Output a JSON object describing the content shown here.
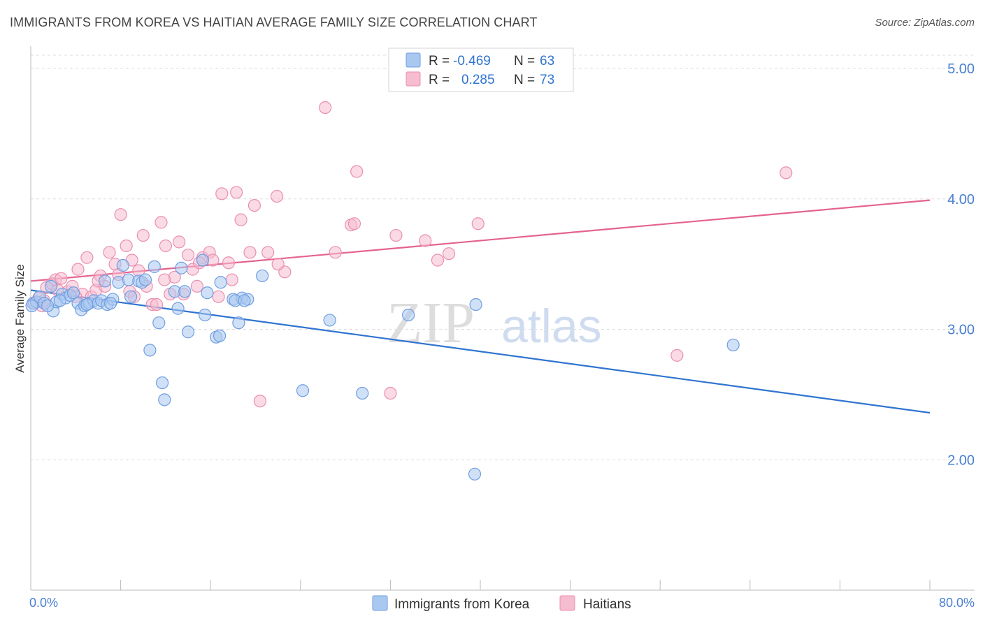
{
  "title": "IMMIGRANTS FROM KOREA VS HAITIAN AVERAGE FAMILY SIZE CORRELATION CHART",
  "source": "Source: ZipAtlas.com",
  "watermark": {
    "zip": "ZIP",
    "atlas": "atlas"
  },
  "colors": {
    "korea_fill": "#a9c8f0",
    "korea_stroke": "#6f9ee0",
    "korea_line": "#2f74d0",
    "haiti_fill": "#f6bcd0",
    "haiti_stroke": "#ea8fb0",
    "haiti_line": "#e4638e",
    "tick_text": "#4a7fd4",
    "grid": "#dddddd"
  },
  "legend": {
    "korea": {
      "r_label": "R =",
      "r_value": "-0.469",
      "n_label": "N =",
      "n_value": "63"
    },
    "haiti": {
      "r_label": "R =",
      "r_value": "0.285",
      "n_label": "N =",
      "n_value": "73"
    }
  },
  "chart_data": {
    "type": "scatter",
    "title": "IMMIGRANTS FROM KOREA VS HAITIAN AVERAGE FAMILY SIZE CORRELATION CHART",
    "xlabel": "",
    "ylabel": "Average Family Size",
    "xlim": [
      0,
      80
    ],
    "ylim": [
      1.0,
      5.15
    ],
    "x_tick_labels": [
      "0.0%",
      "80.0%"
    ],
    "y_ticks": [
      2.0,
      3.0,
      4.0,
      5.0
    ],
    "y_tick_labels": [
      "2.00",
      "3.00",
      "4.00",
      "5.00"
    ],
    "grid": "horizontal dashed",
    "legend_position": "top-center",
    "series": [
      {
        "name": "Immigrants from Korea",
        "r": -0.469,
        "n": 63,
        "trend": {
          "x": [
            0,
            80
          ],
          "y": [
            3.3,
            2.36
          ]
        },
        "points": [
          [
            0.2,
            3.2
          ],
          [
            0.5,
            3.21
          ],
          [
            0.8,
            3.25
          ],
          [
            1.2,
            3.2
          ],
          [
            1.8,
            3.33
          ],
          [
            2.0,
            3.14
          ],
          [
            2.3,
            3.21
          ],
          [
            2.8,
            3.27
          ],
          [
            3.1,
            3.24
          ],
          [
            3.5,
            3.26
          ],
          [
            4.2,
            3.2
          ],
          [
            4.5,
            3.15
          ],
          [
            4.8,
            3.18
          ],
          [
            5.2,
            3.2
          ],
          [
            5.6,
            3.22
          ],
          [
            6.0,
            3.2
          ],
          [
            6.3,
            3.22
          ],
          [
            6.8,
            3.19
          ],
          [
            7.3,
            3.23
          ],
          [
            7.8,
            3.36
          ],
          [
            8.2,
            3.49
          ],
          [
            8.7,
            3.38
          ],
          [
            9.6,
            3.37
          ],
          [
            9.9,
            3.36
          ],
          [
            10.2,
            3.38
          ],
          [
            10.6,
            2.84
          ],
          [
            11.0,
            3.48
          ],
          [
            11.4,
            3.05
          ],
          [
            11.7,
            2.59
          ],
          [
            11.9,
            2.46
          ],
          [
            12.8,
            3.29
          ],
          [
            13.1,
            3.16
          ],
          [
            13.4,
            3.47
          ],
          [
            14.0,
            2.98
          ],
          [
            15.3,
            3.53
          ],
          [
            15.5,
            3.11
          ],
          [
            15.7,
            3.28
          ],
          [
            16.5,
            2.94
          ],
          [
            16.8,
            2.95
          ],
          [
            18.0,
            3.23
          ],
          [
            18.5,
            3.05
          ],
          [
            18.8,
            3.24
          ],
          [
            19.3,
            3.23
          ],
          [
            20.6,
            3.41
          ],
          [
            24.2,
            2.53
          ],
          [
            26.6,
            3.07
          ],
          [
            29.5,
            2.51
          ],
          [
            33.6,
            3.11
          ],
          [
            39.5,
            1.89
          ],
          [
            39.6,
            3.19
          ],
          [
            62.5,
            2.88
          ],
          [
            0.1,
            3.18
          ],
          [
            1.5,
            3.18
          ],
          [
            2.6,
            3.22
          ],
          [
            3.8,
            3.28
          ],
          [
            6.6,
            3.37
          ],
          [
            8.9,
            3.25
          ],
          [
            13.7,
            3.29
          ],
          [
            16.9,
            3.36
          ],
          [
            18.2,
            3.22
          ],
          [
            19.0,
            3.22
          ],
          [
            5.0,
            3.19
          ],
          [
            7.1,
            3.2
          ]
        ]
      },
      {
        "name": "Haitians",
        "r": 0.285,
        "n": 73,
        "trend": {
          "x": [
            0,
            80
          ],
          "y": [
            3.37,
            3.99
          ]
        },
        "points": [
          [
            0.3,
            3.2
          ],
          [
            0.7,
            3.24
          ],
          [
            1.0,
            3.18
          ],
          [
            1.4,
            3.32
          ],
          [
            1.9,
            3.35
          ],
          [
            2.2,
            3.38
          ],
          [
            2.7,
            3.39
          ],
          [
            3.3,
            3.29
          ],
          [
            3.7,
            3.33
          ],
          [
            4.2,
            3.46
          ],
          [
            4.6,
            3.27
          ],
          [
            5.0,
            3.55
          ],
          [
            5.4,
            3.25
          ],
          [
            5.8,
            3.3
          ],
          [
            6.2,
            3.41
          ],
          [
            6.6,
            3.33
          ],
          [
            7.0,
            3.59
          ],
          [
            7.5,
            3.5
          ],
          [
            7.8,
            3.42
          ],
          [
            8.0,
            3.88
          ],
          [
            8.5,
            3.64
          ],
          [
            8.8,
            3.29
          ],
          [
            9.0,
            3.53
          ],
          [
            9.2,
            3.25
          ],
          [
            9.6,
            3.45
          ],
          [
            10.0,
            3.72
          ],
          [
            10.3,
            3.33
          ],
          [
            10.8,
            3.19
          ],
          [
            11.2,
            3.19
          ],
          [
            11.6,
            3.82
          ],
          [
            12.0,
            3.64
          ],
          [
            12.4,
            3.27
          ],
          [
            12.8,
            3.4
          ],
          [
            13.2,
            3.67
          ],
          [
            13.6,
            3.27
          ],
          [
            14.0,
            3.57
          ],
          [
            14.4,
            3.46
          ],
          [
            14.8,
            3.33
          ],
          [
            15.3,
            3.55
          ],
          [
            15.9,
            3.59
          ],
          [
            16.2,
            3.53
          ],
          [
            16.7,
            3.25
          ],
          [
            17.0,
            4.04
          ],
          [
            17.6,
            3.51
          ],
          [
            17.9,
            3.38
          ],
          [
            18.3,
            4.05
          ],
          [
            18.7,
            3.84
          ],
          [
            19.5,
            3.59
          ],
          [
            19.9,
            3.95
          ],
          [
            20.4,
            2.45
          ],
          [
            21.1,
            3.59
          ],
          [
            21.9,
            4.02
          ],
          [
            22.6,
            3.44
          ],
          [
            26.2,
            4.7
          ],
          [
            27.1,
            3.59
          ],
          [
            28.5,
            3.8
          ],
          [
            28.8,
            3.81
          ],
          [
            29.0,
            4.21
          ],
          [
            32.0,
            2.51
          ],
          [
            32.5,
            3.72
          ],
          [
            35.1,
            3.68
          ],
          [
            36.2,
            3.53
          ],
          [
            37.2,
            3.58
          ],
          [
            39.8,
            3.81
          ],
          [
            57.5,
            2.8
          ],
          [
            67.2,
            4.2
          ],
          [
            1.2,
            3.22
          ],
          [
            2.4,
            3.3
          ],
          [
            4.0,
            3.25
          ],
          [
            6.0,
            3.37
          ],
          [
            11.9,
            3.38
          ],
          [
            15.0,
            3.51
          ],
          [
            22.0,
            3.5
          ]
        ]
      }
    ]
  },
  "bottom_legend": [
    "Immigrants from Korea",
    "Haitians"
  ]
}
